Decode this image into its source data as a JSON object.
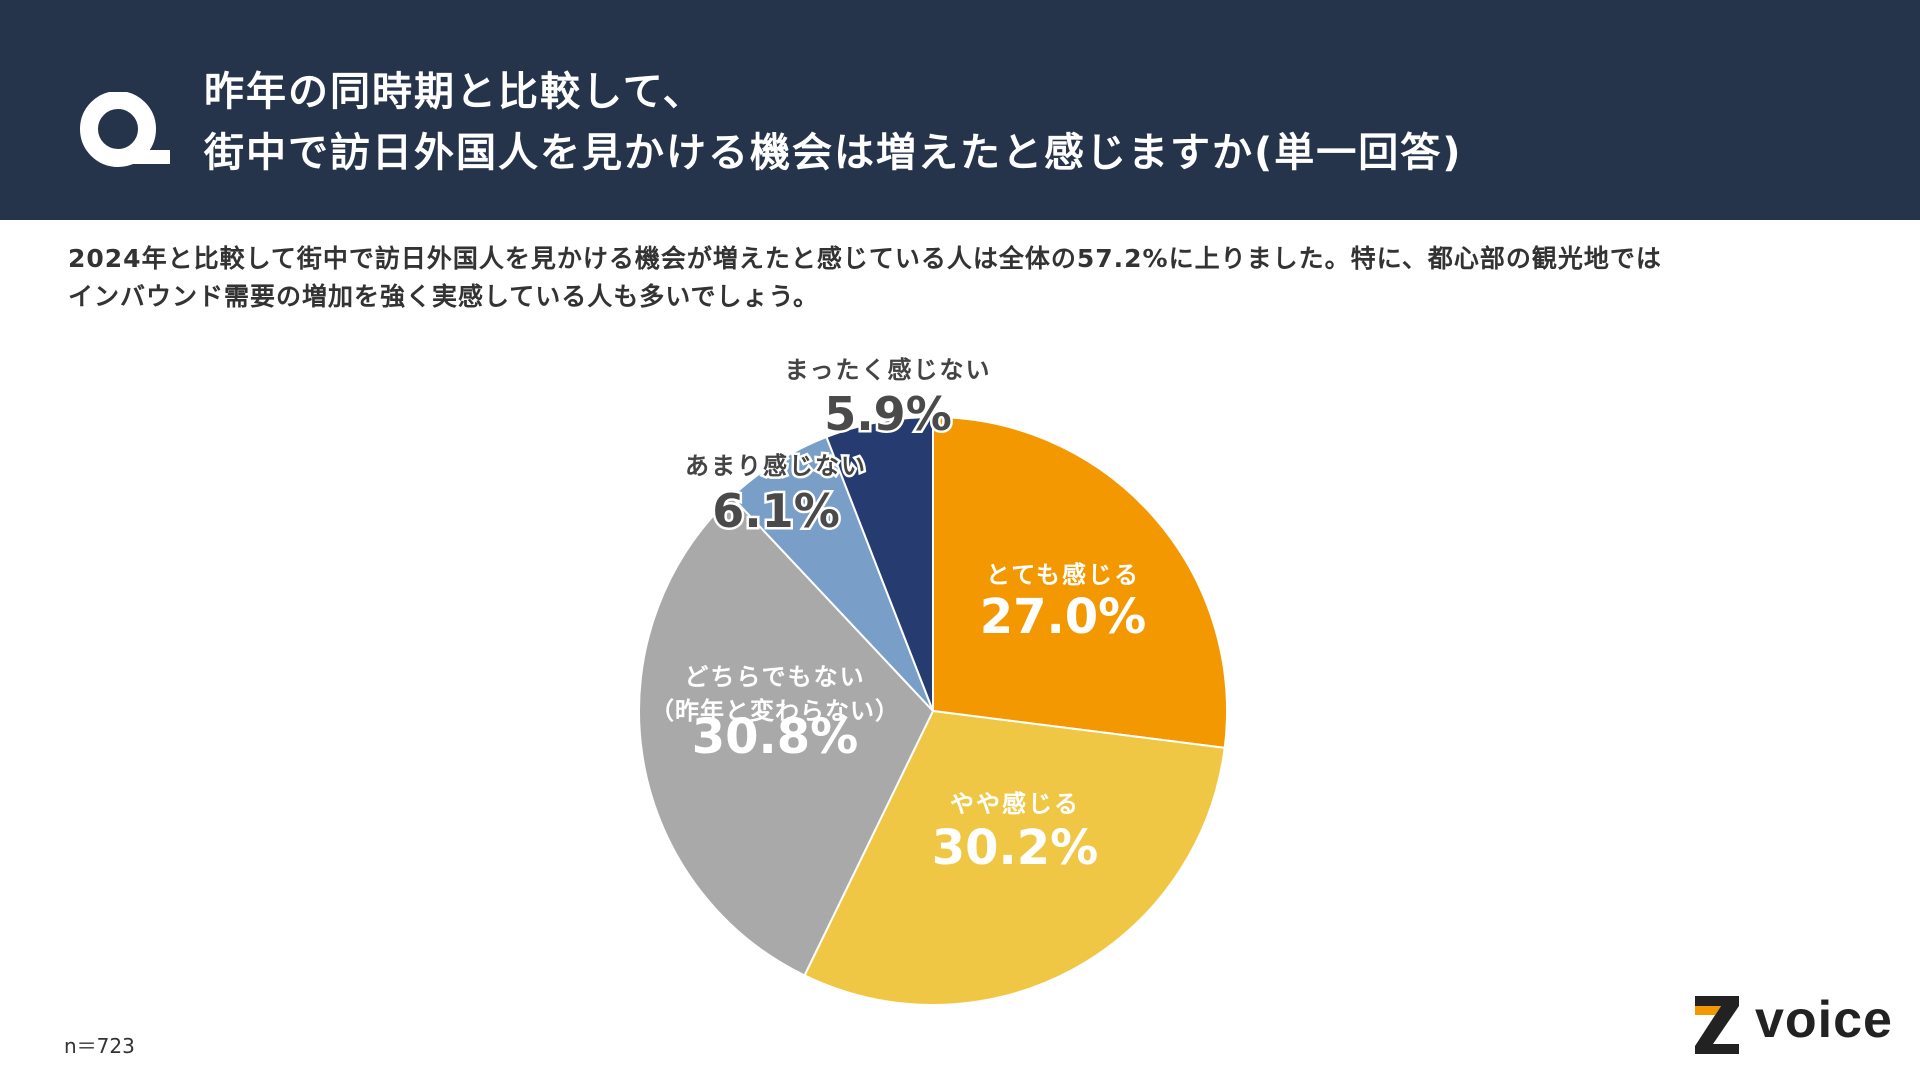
{
  "header": {
    "title_line1": "昨年の同時期と比較して、",
    "title_line2": "街中で訪日外国人を見かける機会は増えたと感じますか(単一回答)",
    "icon": "q-icon",
    "background_color": "#26344b"
  },
  "description": {
    "line1": "2024年と比較して街中で訪日外国人を見かける機会が増えたと感じている人は全体の57.2%に上りました。特に、都心部の観光地では",
    "line2": "インバウンド需要の増加を強く実感している人も多いでしょう。"
  },
  "chart_data": {
    "type": "pie",
    "title": "昨年の同時期と比較して、街中で訪日外国人を見かける機会は増えたと感じますか(単一回答)",
    "start": "top",
    "direction": "clockwise",
    "slices": [
      {
        "label": "とても感じる",
        "label_line2": "",
        "value": 27.0,
        "display": "27.0%",
        "color": "#f39800",
        "label_color": "#ffffff",
        "label_position": "inside"
      },
      {
        "label": "やや感じる",
        "label_line2": "",
        "value": 30.2,
        "display": "30.2%",
        "color": "#f0c744",
        "label_color": "#ffffff",
        "label_position": "inside"
      },
      {
        "label": "どちらでもない",
        "label_line2": "（昨年と変わらない）",
        "value": 30.8,
        "display": "30.8%",
        "color": "#a9a9a9",
        "label_color": "#ffffff",
        "label_position": "inside"
      },
      {
        "label": "あまり感じない",
        "label_line2": "",
        "value": 6.1,
        "display": "6.1%",
        "color": "#799fc9",
        "label_color": "#444444",
        "label_position": "outside"
      },
      {
        "label": "まったく感じない",
        "label_line2": "",
        "value": 5.9,
        "display": "5.9%",
        "color": "#263c70",
        "label_color": "#444444",
        "label_position": "outside"
      }
    ]
  },
  "footer": {
    "sample_size": "n＝723",
    "logo_text": "voice",
    "logo_icon": "z-logo-icon"
  }
}
